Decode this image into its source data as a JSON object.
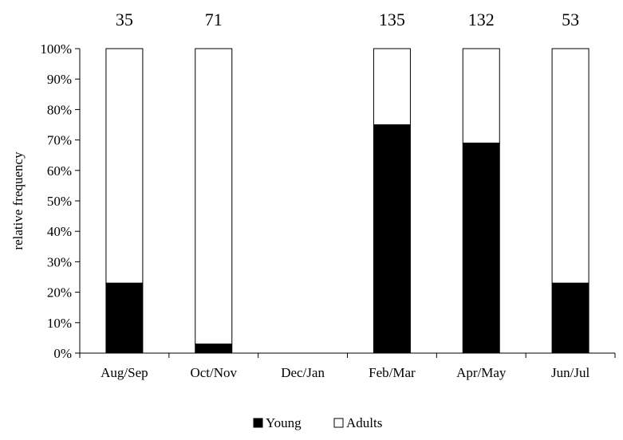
{
  "chart_data": {
    "type": "bar",
    "stacked": true,
    "categories": [
      "Aug/Sep",
      "Oct/Nov",
      "Dec/Jan",
      "Feb/Mar",
      "Apr/May",
      "Jun/Jul"
    ],
    "counts": [
      "35",
      "71",
      "",
      "135",
      "132",
      "53"
    ],
    "series": [
      {
        "name": "Young",
        "values": [
          23,
          3,
          null,
          75,
          69,
          23
        ],
        "color": "#000000"
      },
      {
        "name": "Adults",
        "values": [
          77,
          97,
          null,
          25,
          31,
          77
        ],
        "color": "#ffffff"
      }
    ],
    "ylabel": "relative frequency",
    "xlabel": "",
    "title": "",
    "ylim": [
      0,
      100
    ],
    "yticks": [
      "0%",
      "10%",
      "20%",
      "30%",
      "40%",
      "50%",
      "60%",
      "70%",
      "80%",
      "90%",
      "100%"
    ],
    "legend_position": "bottom-center",
    "grid": false
  }
}
